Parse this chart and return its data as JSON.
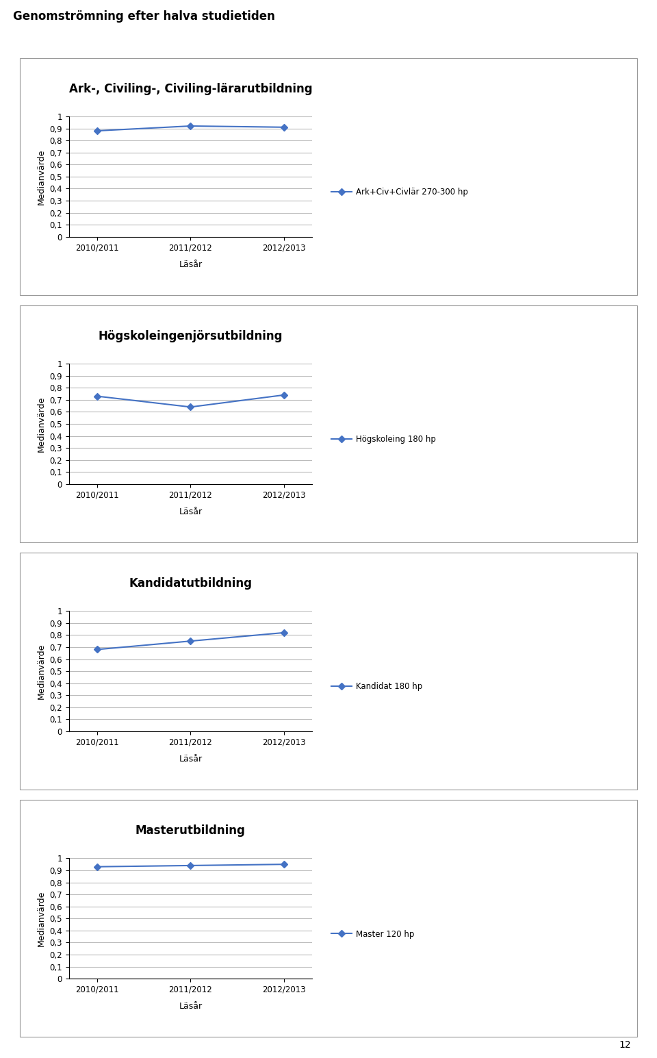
{
  "main_title": "Genomströmning efter halva studietiden",
  "page_number": "12",
  "charts": [
    {
      "title": "Ark-, Civiling-, Civiling-lärarutbildning",
      "xlabel": "Läsår",
      "ylabel": "Medianvärde",
      "x_labels": [
        "2010/2011",
        "2011/2012",
        "2012/2013"
      ],
      "series": [
        {
          "label": "Ark+Civ+Civlär 270-300 hp",
          "values": [
            0.88,
            0.92,
            0.91
          ],
          "color": "#4472C4",
          "marker": "D"
        }
      ],
      "ylim": [
        0,
        1
      ],
      "yticks": [
        0,
        0.1,
        0.2,
        0.3,
        0.4,
        0.5,
        0.6,
        0.7,
        0.8,
        0.9,
        1
      ],
      "ytick_labels": [
        "0",
        "0,1",
        "0,2",
        "0,3",
        "0,4",
        "0,5",
        "0,6",
        "0,7",
        "0,8",
        "0,9",
        "1"
      ]
    },
    {
      "title": "Högskoleingenjörsutbildning",
      "xlabel": "Läsår",
      "ylabel": "Medianvärde",
      "x_labels": [
        "2010/2011",
        "2011/2012",
        "2012/2013"
      ],
      "series": [
        {
          "label": "Högskoleing 180 hp",
          "values": [
            0.73,
            0.64,
            0.74
          ],
          "color": "#4472C4",
          "marker": "D"
        }
      ],
      "ylim": [
        0,
        1
      ],
      "yticks": [
        0,
        0.1,
        0.2,
        0.3,
        0.4,
        0.5,
        0.6,
        0.7,
        0.8,
        0.9,
        1
      ],
      "ytick_labels": [
        "0",
        "0,1",
        "0,2",
        "0,3",
        "0,4",
        "0,5",
        "0,6",
        "0,7",
        "0,8",
        "0,9",
        "1"
      ]
    },
    {
      "title": "Kandidatutbildning",
      "xlabel": "Läsår",
      "ylabel": "Medianvärde",
      "x_labels": [
        "2010/2011",
        "2011/2012",
        "2012/2013"
      ],
      "series": [
        {
          "label": "Kandidat 180 hp",
          "values": [
            0.68,
            0.75,
            0.82
          ],
          "color": "#4472C4",
          "marker": "D"
        }
      ],
      "ylim": [
        0,
        1
      ],
      "yticks": [
        0,
        0.1,
        0.2,
        0.3,
        0.4,
        0.5,
        0.6,
        0.7,
        0.8,
        0.9,
        1
      ],
      "ytick_labels": [
        "0",
        "0,1",
        "0,2",
        "0,3",
        "0,4",
        "0,5",
        "0,6",
        "0,7",
        "0,8",
        "0,9",
        "1"
      ]
    },
    {
      "title": "Masterutbildning",
      "xlabel": "Läsår",
      "ylabel": "Medianvärde",
      "x_labels": [
        "2010/2011",
        "2011/2012",
        "2012/2013"
      ],
      "series": [
        {
          "label": "Master 120 hp",
          "values": [
            0.93,
            0.94,
            0.95
          ],
          "color": "#4472C4",
          "marker": "D"
        }
      ],
      "ylim": [
        0,
        1
      ],
      "yticks": [
        0,
        0.1,
        0.2,
        0.3,
        0.4,
        0.5,
        0.6,
        0.7,
        0.8,
        0.9,
        1
      ],
      "ytick_labels": [
        "0",
        "0,1",
        "0,2",
        "0,3",
        "0,4",
        "0,5",
        "0,6",
        "0,7",
        "0,8",
        "0,9",
        "1"
      ]
    }
  ],
  "background_color": "#ffffff",
  "chart_bg_color": "#ffffff",
  "grid_color": "#bbbbbb",
  "box_color": "#999999"
}
